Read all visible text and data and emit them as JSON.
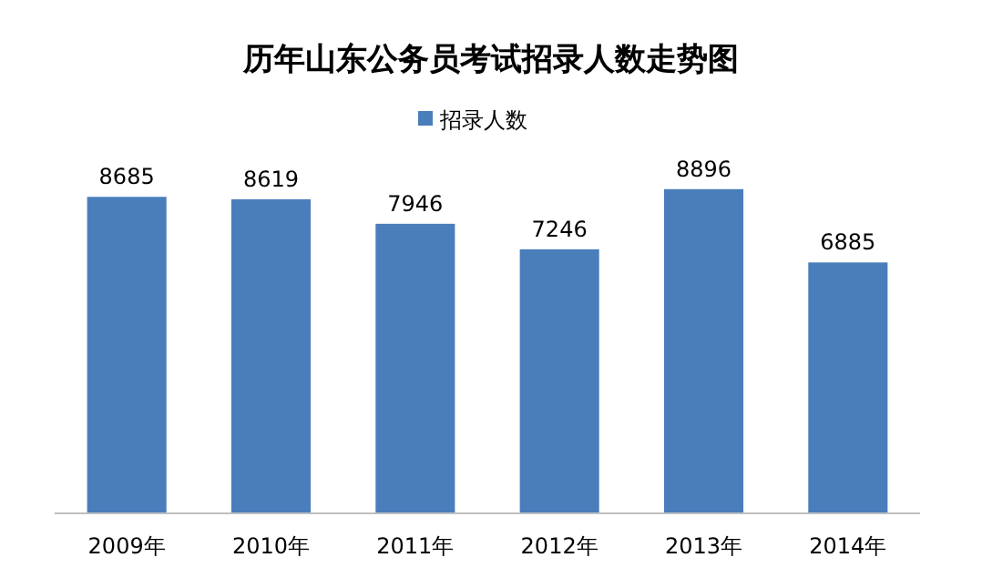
{
  "chart_data": {
    "type": "bar",
    "title": "历年山东公务员考试招录人数走势图",
    "categories": [
      "2009年",
      "2010年",
      "2011年",
      "2012年",
      "2013年",
      "2014年"
    ],
    "series": [
      {
        "name": "招录人数",
        "color": "#4a7ebb",
        "values": [
          8685,
          8619,
          7946,
          7246,
          8896,
          6885
        ]
      }
    ],
    "data_labels": true,
    "legend": "top"
  }
}
